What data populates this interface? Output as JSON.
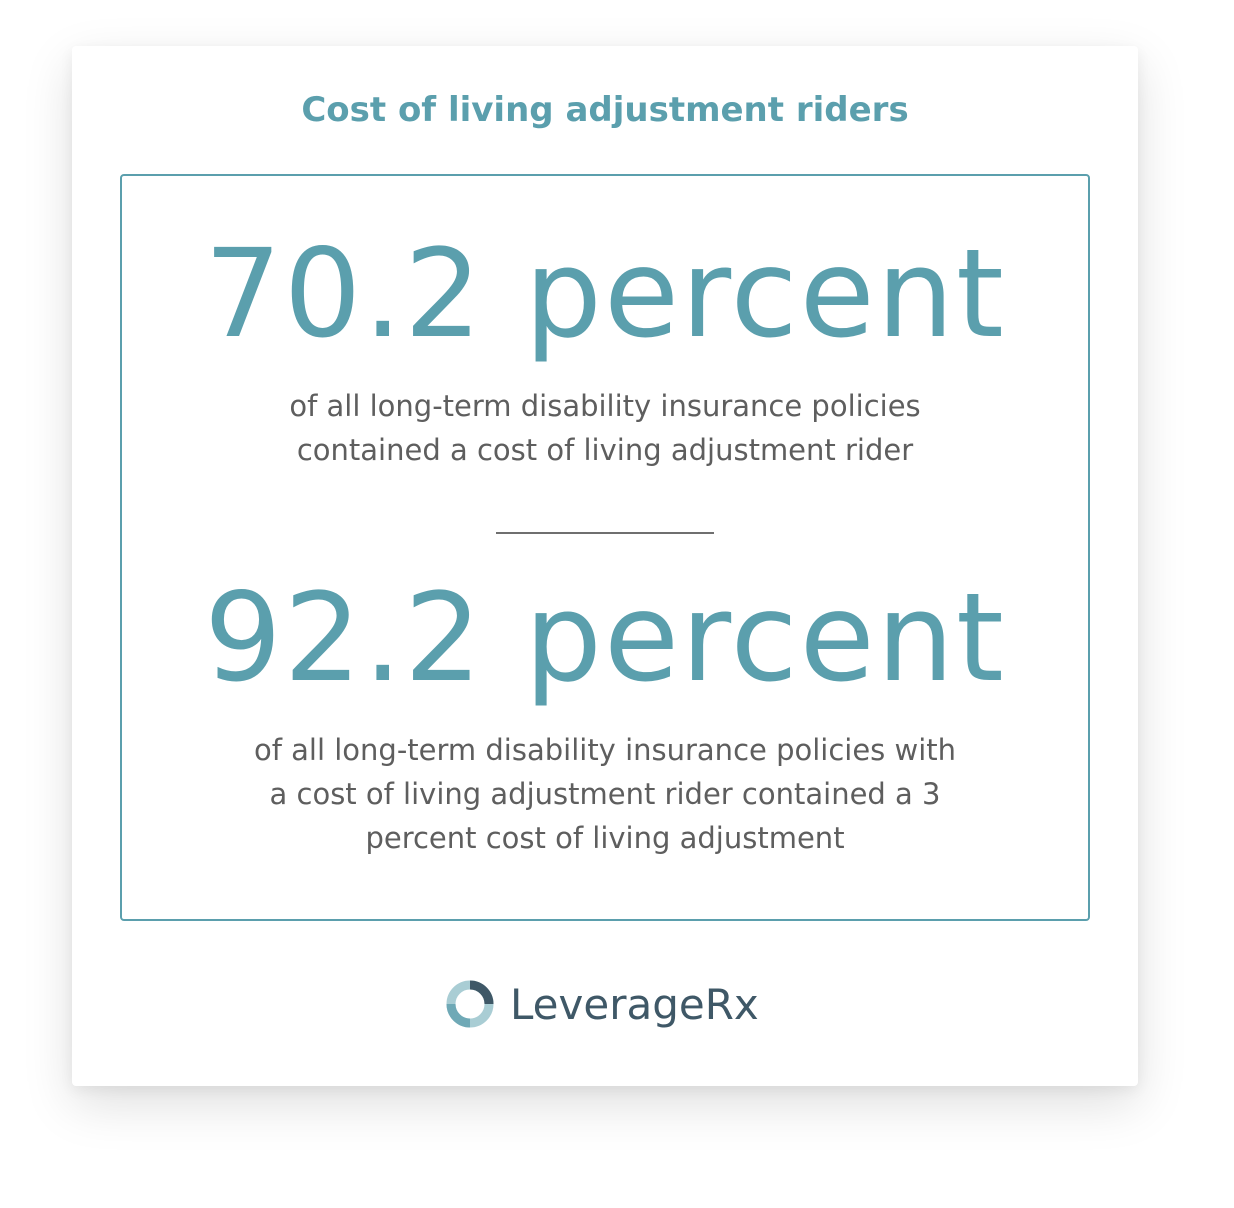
{
  "title": "Cost of living adjustment riders",
  "stats": [
    {
      "value": "70.2 percent",
      "description_lines": [
        "of all long-term disability insurance policies",
        "contained a cost of living adjustment rider"
      ]
    },
    {
      "value": "92.2 percent",
      "description_lines": [
        "of all long-term disability insurance policies with",
        "a cost of living adjustment rider contained a 3",
        "percent cost of living adjustment"
      ]
    }
  ],
  "brand": {
    "name": "LeverageRx",
    "logo_icon": "ring-logo-icon"
  },
  "colors": {
    "accent": "#5b9fad",
    "body_text": "#5e5e5e",
    "brand_text": "#3f5867"
  }
}
